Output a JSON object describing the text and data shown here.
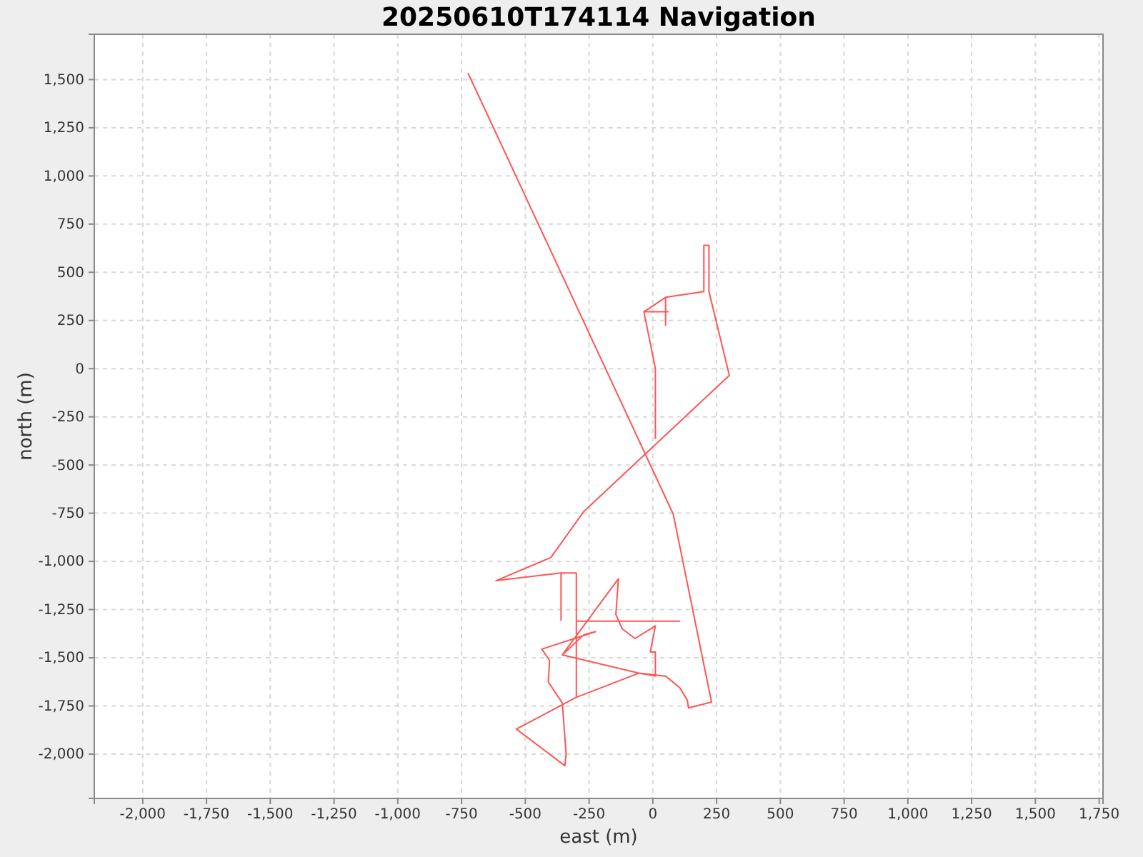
{
  "chart_data": {
    "type": "line",
    "title": "20250610T174114 Navigation",
    "xlabel": "east (m)",
    "ylabel": "north (m)",
    "xlim": [
      -2190,
      1765
    ],
    "ylim": [
      -2230,
      1735
    ],
    "xticks": [
      {
        "value": -2000,
        "label": "-2,000"
      },
      {
        "value": -1750,
        "label": "-1,750"
      },
      {
        "value": -1500,
        "label": "-1,500"
      },
      {
        "value": -1250,
        "label": "-1,250"
      },
      {
        "value": -1000,
        "label": "-1,000"
      },
      -750,
      -500,
      -250,
      0,
      250,
      500,
      750,
      {
        "value": 1000,
        "label": "1,000"
      },
      {
        "value": 1250,
        "label": "1,250"
      },
      {
        "value": 1500,
        "label": "1,500"
      },
      {
        "value": 1750,
        "label": "1,750"
      }
    ],
    "yticks": [
      {
        "value": -2000,
        "label": "-2,000"
      },
      {
        "value": -1750,
        "label": "-1,750"
      },
      {
        "value": -1500,
        "label": "-1,500"
      },
      {
        "value": -1250,
        "label": "-1,250"
      },
      {
        "value": -1000,
        "label": "-1,000"
      },
      -750,
      -500,
      -250,
      0,
      250,
      500,
      750,
      {
        "value": 1000,
        "label": "1,000"
      },
      {
        "value": 1250,
        "label": "1,250"
      },
      {
        "value": 1500,
        "label": "1,500"
      }
    ],
    "grid": true,
    "marker": "none",
    "line_style": "solid",
    "series": [
      {
        "color": "#ff5555",
        "x": [
          10,
          10,
          -35,
          60,
          -35,
          50,
          50,
          50,
          200,
          200,
          220,
          220,
          300,
          -270,
          -400,
          -615,
          -360,
          -360,
          -360,
          -300,
          -300,
          105,
          -300,
          -300,
          -535,
          -345,
          -340,
          -355,
          -410,
          -405,
          -435,
          -225,
          -270,
          -355,
          -135,
          -145,
          -120,
          -70,
          10,
          -10,
          10,
          10,
          -55,
          -355,
          -55,
          -300,
          -55,
          50,
          105,
          135,
          140,
          230,
          80,
          -725
        ],
        "values": [
          -365,
          0,
          295,
          295,
          295,
          370,
          225,
          370,
          400,
          640,
          640,
          400,
          -35,
          -740,
          -980,
          -1100,
          -1060,
          -1305,
          -1060,
          -1060,
          -1310,
          -1310,
          -1310,
          -1705,
          -1870,
          -2060,
          -2000,
          -1735,
          -1625,
          -1515,
          -1455,
          -1365,
          -1380,
          -1485,
          -1090,
          -1275,
          -1350,
          -1400,
          -1335,
          -1470,
          -1470,
          -1595,
          -1580,
          -1485,
          -1580,
          -1705,
          -1580,
          -1595,
          -1655,
          -1720,
          -1760,
          -1730,
          -755,
          1535
        ]
      }
    ]
  }
}
